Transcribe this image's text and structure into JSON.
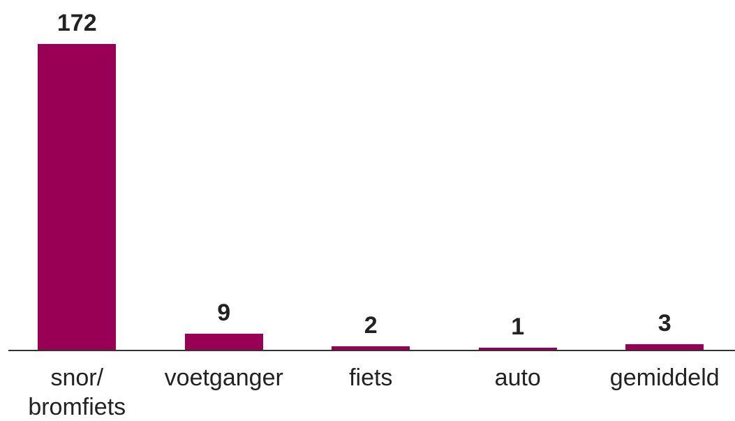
{
  "chart_data": {
    "type": "bar",
    "categories": [
      "snor/ bromfiets",
      "voetganger",
      "fiets",
      "auto",
      "gemiddeld"
    ],
    "values": [
      172,
      9,
      2,
      1,
      3
    ],
    "color": "#990055"
  }
}
